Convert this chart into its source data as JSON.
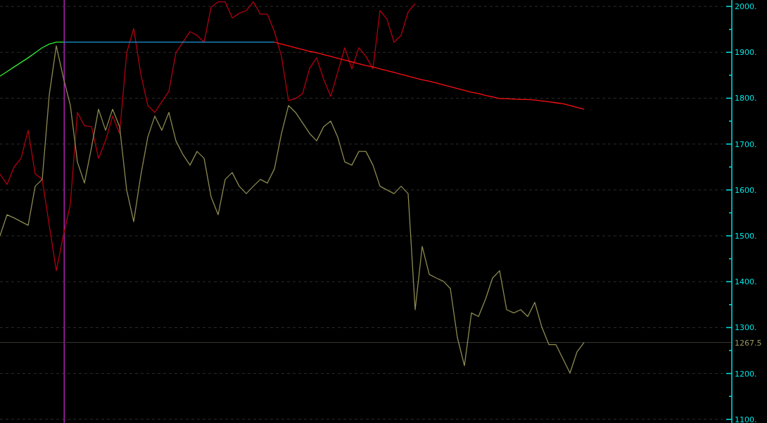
{
  "chart_data": {
    "type": "line",
    "ylim": [
      1092,
      2014
    ],
    "tick_labels": "y",
    "grid": "y",
    "categories": [
      null,
      null,
      null,
      null,
      null,
      null,
      null,
      null,
      null,
      null,
      null,
      null,
      null,
      null,
      null,
      null,
      null,
      null,
      null,
      null,
      null,
      null,
      null,
      null,
      null,
      null,
      null,
      null,
      null,
      null,
      null,
      null,
      null,
      null,
      null,
      null,
      null,
      null,
      null,
      null,
      null,
      null,
      null,
      null,
      null,
      null,
      null,
      null,
      null,
      null,
      null,
      null,
      null,
      null,
      null,
      null,
      null,
      null,
      null,
      null,
      null,
      null,
      null,
      null,
      null,
      null,
      null,
      null,
      null,
      null,
      null,
      null,
      null,
      null,
      null,
      null,
      null,
      null,
      null,
      null,
      null,
      null,
      null,
      null,
      null,
      null,
      null,
      null,
      null,
      null,
      null,
      null,
      null,
      null,
      null,
      null,
      null,
      null,
      null,
      null,
      null,
      null,
      null,
      null,
      null
    ],
    "yticks": [
      {
        "value": 1100,
        "label": "1100."
      },
      {
        "value": 1150,
        "label": null
      },
      {
        "value": 1200,
        "label": "1200."
      },
      {
        "value": 1250,
        "label": null
      },
      {
        "value": 1300,
        "label": "1300."
      },
      {
        "value": 1350,
        "label": null
      },
      {
        "value": 1400,
        "label": "1400."
      },
      {
        "value": 1450,
        "label": null
      },
      {
        "value": 1500,
        "label": "1500."
      },
      {
        "value": 1550,
        "label": null
      },
      {
        "value": 1600,
        "label": "1600."
      },
      {
        "value": 1650,
        "label": null
      },
      {
        "value": 1700,
        "label": "1700."
      },
      {
        "value": 1750,
        "label": null
      },
      {
        "value": 1800,
        "label": "1800."
      },
      {
        "value": 1850,
        "label": null
      },
      {
        "value": 1900,
        "label": "1900."
      },
      {
        "value": 1950,
        "label": null
      },
      {
        "value": 2000,
        "label": "2000."
      }
    ],
    "ref_lines": [
      {
        "axis": "y",
        "value": 1267.5,
        "label": "1267.5",
        "color": "#3a3a30"
      }
    ],
    "series": [
      {
        "color": "#b00010",
        "values": [
          1635,
          1612,
          1650,
          1669,
          1730,
          1635,
          1623,
          1523,
          1424,
          1500,
          1569,
          1769,
          1740,
          1738,
          1669,
          1707,
          1761,
          1723,
          1899,
          1952,
          1853,
          1784,
          1769,
          1792,
          1815,
          1899,
          1922,
          1945,
          1937,
          1922,
          1998,
          2010,
          2010,
          1975,
          1985,
          1991,
          2010,
          1983,
          1983,
          1945,
          1891,
          1795,
          1799,
          1810,
          1865,
          1888,
          1841,
          1804,
          1857,
          1910,
          1864,
          1910,
          1891,
          1864,
          1991,
          1972,
          1922,
          1937,
          1988,
          2006,
          null,
          null,
          null,
          null,
          null,
          null,
          null,
          null,
          null,
          null,
          null,
          null,
          null,
          null,
          null,
          null,
          null,
          null,
          null,
          null,
          null,
          null,
          null,
          null,
          null,
          null,
          null,
          null,
          null,
          null,
          null,
          null,
          null,
          null,
          null,
          null,
          null,
          null,
          null,
          null,
          null,
          null,
          null,
          null,
          null
        ]
      },
      {
        "color": "#8c8a50",
        "values": [
          1500,
          1546,
          1539,
          1531,
          1523,
          1608,
          1623,
          1807,
          1914,
          1845,
          1784,
          1661,
          1615,
          1692,
          1776,
          1730,
          1776,
          1738,
          1600,
          1531,
          1631,
          1715,
          1761,
          1730,
          1769,
          1707,
          1677,
          1654,
          1684,
          1669,
          1585,
          1546,
          1623,
          1638,
          1608,
          1592,
          1608,
          1623,
          1615,
          1646,
          1723,
          1784,
          1769,
          1746,
          1723,
          1707,
          1738,
          1750,
          1715,
          1661,
          1654,
          1684,
          1684,
          1654,
          1608,
          1600,
          1592,
          1608,
          1592,
          1339,
          1477,
          1416,
          1408,
          1401,
          1385,
          1278,
          1217,
          1332,
          1324,
          1362,
          1408,
          1424,
          1339,
          1332,
          1339,
          1324,
          1355,
          1301,
          1263,
          1263,
          1232,
          1201,
          1247,
          1267.5,
          null,
          null,
          null,
          null,
          null,
          null,
          null,
          null,
          null,
          null,
          null,
          null,
          null,
          null,
          null,
          null,
          null,
          null,
          null,
          null,
          null
        ]
      },
      {
        "color": "#33ee33",
        "values": [
          1848,
          1858,
          1868,
          1878,
          1888,
          1899,
          1910,
          1918,
          1922,
          1922,
          null,
          null,
          null,
          null,
          null,
          null,
          null,
          null,
          null,
          null,
          null,
          null,
          null,
          null,
          null,
          null,
          null,
          null,
          null,
          null,
          null,
          null,
          null,
          null,
          null,
          null,
          null,
          null,
          null,
          null,
          null,
          null,
          null,
          null,
          null,
          null,
          null,
          null,
          null,
          null,
          null,
          null,
          null,
          null,
          null,
          null,
          null,
          null,
          null,
          null,
          null,
          null,
          null,
          null,
          null,
          null,
          null,
          null,
          null,
          null,
          null,
          null,
          null,
          null,
          null,
          null,
          null,
          null,
          null,
          null,
          null,
          null,
          null,
          null,
          null,
          null,
          null,
          null,
          null,
          null,
          null,
          null,
          null,
          null,
          null,
          null,
          null,
          null,
          null,
          null,
          null,
          null,
          null,
          null,
          null
        ]
      },
      {
        "color": "#1a9ad6",
        "values": [
          null,
          null,
          null,
          null,
          null,
          null,
          null,
          null,
          null,
          1922,
          1922,
          1922,
          1922,
          1922,
          1922,
          1922,
          1922,
          1922,
          1922,
          1922,
          1922,
          1922,
          1922,
          1922,
          1922,
          1922,
          1922,
          1922,
          1922,
          1922,
          1922,
          1922,
          1922,
          1922,
          1922,
          1922,
          1922,
          1922,
          1922,
          1922,
          null,
          null,
          null,
          null,
          null,
          null,
          null,
          null,
          null,
          null,
          null,
          null,
          null,
          null,
          null,
          null,
          null,
          null,
          null,
          null,
          null,
          null,
          null,
          null,
          null,
          null,
          null,
          null,
          null,
          null,
          null,
          null,
          null,
          null,
          null,
          null,
          null,
          null,
          null,
          null,
          null,
          null,
          null,
          null,
          null,
          null,
          null,
          null,
          null,
          null,
          null,
          null,
          null,
          null,
          null,
          null,
          null,
          null,
          null,
          null,
          null,
          null,
          null,
          null,
          null
        ]
      },
      {
        "color": "#ff1010",
        "values": [
          null,
          null,
          null,
          null,
          null,
          null,
          null,
          null,
          null,
          null,
          null,
          null,
          null,
          null,
          null,
          null,
          null,
          null,
          null,
          null,
          null,
          null,
          null,
          null,
          null,
          null,
          null,
          null,
          null,
          null,
          null,
          null,
          null,
          null,
          null,
          null,
          null,
          null,
          null,
          1922,
          1918,
          1914,
          1910,
          1906,
          1902,
          1899,
          1895,
          1891,
          1887,
          1883,
          1879,
          1875,
          1871,
          1868,
          1864,
          1860,
          1856,
          1852,
          1848,
          1844,
          1840,
          1837,
          1833,
          1829,
          1825,
          1821,
          1817,
          1813,
          1810,
          1806,
          1803,
          1799,
          1799,
          1798,
          1797,
          1797,
          1796,
          1794,
          1792,
          1790,
          1788,
          1784,
          1780,
          1776,
          null,
          null,
          null,
          null,
          null,
          null,
          null,
          null,
          null,
          null,
          null,
          null,
          null,
          null,
          null,
          null,
          null,
          null,
          null,
          null,
          null
        ]
      }
    ]
  }
}
